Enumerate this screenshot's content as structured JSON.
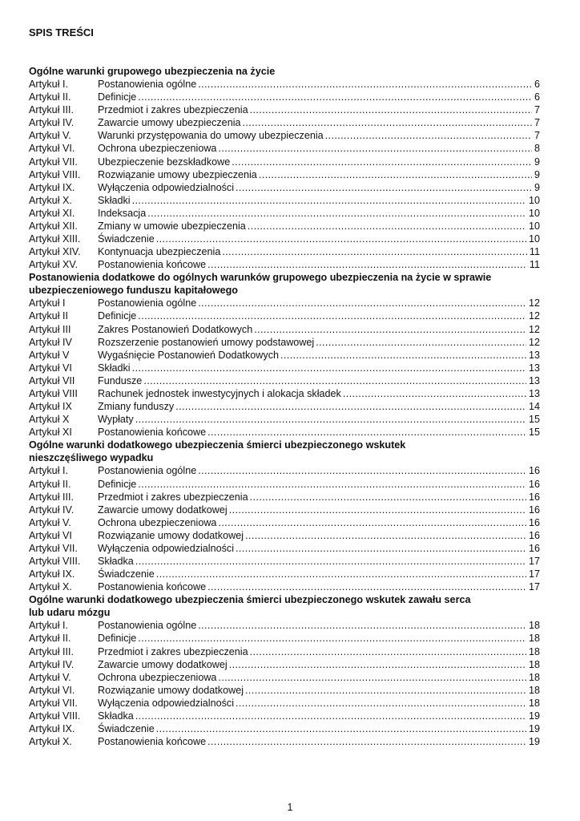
{
  "title": "SPIS TREŚCI",
  "sections": [
    {
      "heading": "Ogólne warunki grupowego ubezpieczenia na życie",
      "items": [
        {
          "article": "Artykuł I.",
          "name": "Postanowienia ogólne",
          "page": "6"
        },
        {
          "article": "Artykuł II.",
          "name": "Definicje",
          "page": "6"
        },
        {
          "article": "Artykuł III.",
          "name": "Przedmiot i zakres ubezpieczenia",
          "page": "7"
        },
        {
          "article": "Artykuł IV.",
          "name": "Zawarcie umowy ubezpieczenia",
          "page": "7"
        },
        {
          "article": "Artykuł V.",
          "name": "Warunki przystępowania do umowy ubezpieczenia",
          "page": "7"
        },
        {
          "article": "Artykuł VI.",
          "name": "Ochrona ubezpieczeniowa",
          "page": "8"
        },
        {
          "article": "Artykuł VII.",
          "name": "Ubezpieczenie bezskładkowe",
          "page": "9"
        },
        {
          "article": "Artykuł VIII.",
          "name": "Rozwiązanie umowy ubezpieczenia",
          "page": "9"
        },
        {
          "article": "Artykuł IX.",
          "name": "Wyłączenia odpowiedzialności",
          "page": "9"
        },
        {
          "article": "Artykuł X.",
          "name": "Składki",
          "page": "10"
        },
        {
          "article": "Artykuł XI.",
          "name": "Indeksacja",
          "page": "10"
        },
        {
          "article": "Artykuł XII.",
          "name": "Zmiany w umowie ubezpieczenia",
          "page": "10"
        },
        {
          "article": "Artykuł XIII.",
          "name": "Świadczenie",
          "page": "10"
        },
        {
          "article": "Artykuł XIV.",
          "name": "Kontynuacja ubezpieczenia",
          "page": "11"
        },
        {
          "article": "Artykuł XV.",
          "name": "Postanowienia końcowe",
          "page": "11"
        }
      ]
    },
    {
      "heading": "Postanowienia dodatkowe do ogólnych warunków grupowego ubezpieczenia na życie w sprawie ubezpieczeniowego funduszu kapitałowego",
      "items": [
        {
          "article": "Artykuł I",
          "name": "Postanowienia ogólne",
          "page": "12"
        },
        {
          "article": "Artykuł II",
          "name": "Definicje",
          "page": "12"
        },
        {
          "article": "Artykuł III",
          "name": "Zakres Postanowień Dodatkowych",
          "page": "12"
        },
        {
          "article": "Artykuł IV",
          "name": "Rozszerzenie postanowień umowy podstawowej",
          "page": "12"
        },
        {
          "article": "Artykuł V",
          "name": "Wygaśnięcie Postanowień Dodatkowych",
          "page": "13"
        },
        {
          "article": "Artykuł VI",
          "name": "Składki",
          "page": "13"
        },
        {
          "article": "Artykuł VII",
          "name": "Fundusze",
          "page": "13"
        },
        {
          "article": "Artykuł VIII",
          "name": "Rachunek jednostek inwestycyjnych i alokacja składek",
          "page": "13"
        },
        {
          "article": "Artykuł IX",
          "name": "Zmiany funduszy",
          "page": "14"
        },
        {
          "article": "Artykuł X",
          "name": "Wypłaty",
          "page": "15"
        },
        {
          "article": "Artykuł XI",
          "name": "Postanowienia końcowe",
          "page": "15"
        }
      ]
    },
    {
      "heading": "Ogólne warunki dodatkowego ubezpieczenia śmierci ubezpieczonego wskutek nieszczęśliwego wypadku",
      "items": [
        {
          "article": "Artykuł I.",
          "name": "Postanowienia ogólne",
          "page": "16"
        },
        {
          "article": "Artykuł II.",
          "name": "Definicje",
          "page": "16"
        },
        {
          "article": "Artykuł III.",
          "name": "Przedmiot i zakres ubezpieczenia",
          "page": "16"
        },
        {
          "article": "Artykuł IV.",
          "name": "Zawarcie umowy dodatkowej",
          "page": "16"
        },
        {
          "article": "Artykuł V.",
          "name": "Ochrona ubezpieczeniowa",
          "page": "16"
        },
        {
          "article": "Artykuł VI",
          "name": "Rozwiązanie umowy dodatkowej",
          "page": "16"
        },
        {
          "article": "Artykuł VII.",
          "name": "Wyłączenia odpowiedzialności",
          "page": "16"
        },
        {
          "article": "Artykuł VIII.",
          "name": "Składka",
          "page": "17"
        },
        {
          "article": "Artykuł IX.",
          "name": "Świadczenie",
          "page": "17"
        },
        {
          "article": "Artykuł X.",
          "name": "Postanowienia końcowe",
          "page": "17"
        }
      ]
    },
    {
      "heading": "Ogólne warunki dodatkowego ubezpieczenia śmierci ubezpieczonego wskutek zawału serca lub udaru mózgu",
      "items": [
        {
          "article": "Artykuł I.",
          "name": "Postanowienia ogólne",
          "page": "18"
        },
        {
          "article": "Artykuł II.",
          "name": "Definicje",
          "page": "18"
        },
        {
          "article": "Artykuł III.",
          "name": "Przedmiot i zakres ubezpieczenia",
          "page": "18"
        },
        {
          "article": "Artykuł IV.",
          "name": "Zawarcie umowy dodatkowej",
          "page": "18"
        },
        {
          "article": "Artykuł V.",
          "name": "Ochrona ubezpieczeniowa",
          "page": "18"
        },
        {
          "article": "Artykuł VI.",
          "name": "Rozwiązanie umowy dodatkowej",
          "page": "18"
        },
        {
          "article": "Artykuł VII.",
          "name": "Wyłączenia odpowiedzialności",
          "page": "18"
        },
        {
          "article": "Artykuł VIII.",
          "name": "Składka",
          "page": "19"
        },
        {
          "article": "Artykuł IX.",
          "name": "Świadczenie",
          "page": "19"
        },
        {
          "article": "Artykuł X.",
          "name": "Postanowienia końcowe",
          "page": "19"
        }
      ]
    }
  ],
  "page_number": "1"
}
